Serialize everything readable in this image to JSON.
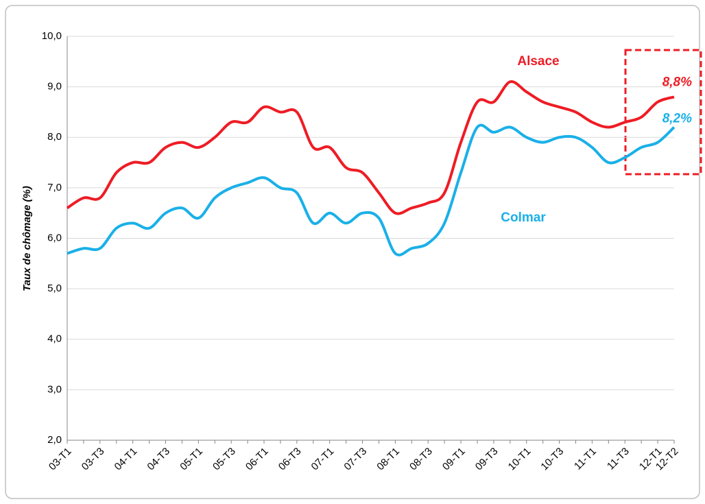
{
  "chart_data": {
    "type": "line",
    "ylabel": "Taux de chômage (%)",
    "categories": [
      "03-T1",
      null,
      "03-T3",
      null,
      "04-T1",
      null,
      "04-T3",
      null,
      "05-T1",
      null,
      "05-T3",
      null,
      "06-T1",
      null,
      "06-T3",
      null,
      "07-T1",
      null,
      "07-T3",
      null,
      "08-T1",
      null,
      "08-T3",
      null,
      "09-T1",
      null,
      "09-T3",
      null,
      "10-T1",
      null,
      "10-T3",
      null,
      "11-T1",
      null,
      "11-T3",
      null,
      "12-T1",
      "12-T2"
    ],
    "series": [
      {
        "name": "Alsace",
        "color": "#ee1c25",
        "values": [
          6.6,
          6.8,
          6.8,
          7.3,
          7.5,
          7.5,
          7.8,
          7.9,
          7.8,
          8.0,
          8.3,
          8.3,
          8.6,
          8.5,
          8.5,
          7.8,
          7.8,
          7.4,
          7.3,
          6.9,
          6.5,
          6.6,
          6.7,
          6.9,
          7.9,
          8.7,
          8.7,
          9.1,
          8.9,
          8.7,
          8.6,
          8.5,
          8.3,
          8.2,
          8.3,
          8.4,
          8.7,
          8.8
        ],
        "value_labels": [
          null,
          null,
          null,
          null,
          null,
          null,
          null,
          null,
          null,
          null,
          null,
          null,
          null,
          null,
          null,
          null,
          null,
          null,
          null,
          null,
          null,
          null,
          null,
          null,
          null,
          null,
          null,
          null,
          null,
          null,
          null,
          null,
          null,
          null,
          null,
          null,
          null,
          "8,8%"
        ]
      },
      {
        "name": "Colmar",
        "color": "#1ab0e8",
        "values": [
          5.7,
          5.8,
          5.8,
          6.2,
          6.3,
          6.2,
          6.5,
          6.6,
          6.4,
          6.8,
          7.0,
          7.1,
          7.2,
          7.0,
          6.9,
          6.3,
          6.5,
          6.3,
          6.5,
          6.4,
          5.7,
          5.8,
          5.9,
          6.3,
          7.3,
          8.2,
          8.1,
          8.2,
          8.0,
          7.9,
          8.0,
          8.0,
          7.8,
          7.5,
          7.6,
          7.8,
          7.9,
          8.2
        ],
        "value_labels": [
          null,
          null,
          null,
          null,
          null,
          null,
          null,
          null,
          null,
          null,
          null,
          null,
          null,
          null,
          null,
          null,
          null,
          null,
          null,
          null,
          null,
          null,
          null,
          null,
          null,
          null,
          null,
          null,
          null,
          null,
          null,
          null,
          null,
          null,
          null,
          null,
          null,
          "8,2%"
        ]
      }
    ],
    "ylim": [
      2,
      10
    ],
    "yticks": [
      {
        "value": 2,
        "label": "2,0"
      },
      {
        "value": 3,
        "label": "3,0"
      },
      {
        "value": 4,
        "label": "4,0"
      },
      {
        "value": 5,
        "label": "5,0"
      },
      {
        "value": 6,
        "label": "6,0"
      },
      {
        "value": 7,
        "label": "7,0"
      },
      {
        "value": 8,
        "label": "8,0"
      },
      {
        "value": 9,
        "label": "9,0"
      },
      {
        "value": 10,
        "label": "10,0"
      }
    ],
    "grid": true
  }
}
